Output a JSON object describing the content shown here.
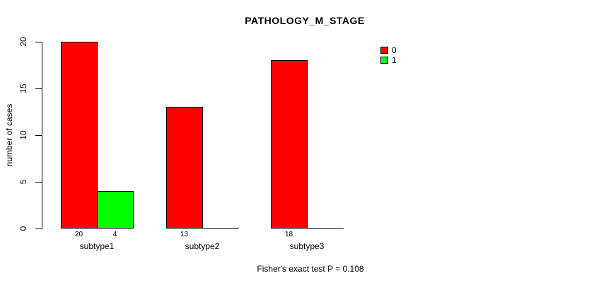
{
  "chart_data": {
    "type": "bar",
    "title": "PATHOLOGY_M_STAGE",
    "ylabel": "number of cases",
    "xlabel": "",
    "footer": "Fisher's exact test P = 0.108",
    "categories": [
      "subtype1",
      "subtype2",
      "subtype3"
    ],
    "series": [
      {
        "name": "0",
        "color": "#FF0000",
        "values": [
          20,
          13,
          18
        ]
      },
      {
        "name": "1",
        "color": "#00FF00",
        "values": [
          4,
          0,
          0
        ]
      }
    ],
    "bar_value_labels": [
      [
        "20",
        "13",
        "18"
      ],
      [
        "4",
        "",
        ""
      ]
    ],
    "ylim": [
      0,
      20
    ],
    "yticks": [
      0,
      5,
      10,
      15,
      20
    ],
    "legend_position": "topright",
    "grid": false,
    "background_color": "#FFFFFF",
    "axis_color": "#000000"
  }
}
